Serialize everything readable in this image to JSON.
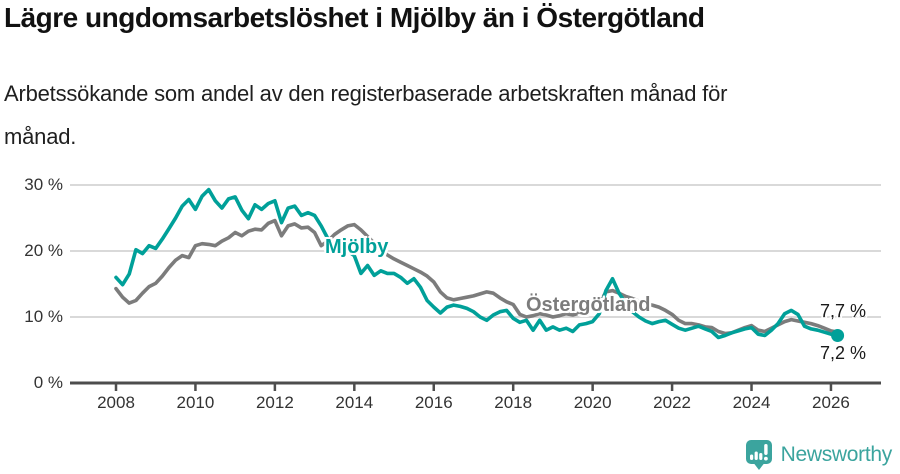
{
  "header": {
    "title": "Lägre ungdomsarbetslöshet i Mjölby än i Östergötland",
    "subtitle": "Arbetssökande som andel av den registerbaserade arbetskraften månad för\nmånad."
  },
  "chart_data": {
    "type": "line",
    "title": "Lägre ungdomsarbetslöshet i Mjölby än i Östergötland",
    "subtitle": "Arbetssökande som andel av den registerbaserade arbetskraften månad för månad.",
    "unit": "%",
    "y_ticks": [
      0,
      10,
      20,
      30
    ],
    "y_tick_labels": [
      "0 %",
      "10 %",
      "20 %",
      "30 %"
    ],
    "x_ticks": [
      2008,
      2010,
      2012,
      2014,
      2016,
      2018,
      2020,
      2022,
      2024,
      2026
    ],
    "x_range": [
      2008.0,
      2026.17
    ],
    "y_range": [
      0,
      30
    ],
    "x_start": 2008.0,
    "x_step_years": 0.16667,
    "grid": "horizontal-only",
    "legend_position": "inline-labels",
    "series": [
      {
        "name": "Östergötland",
        "color": "#7c7c7c",
        "end_label": "7,7 %",
        "end_value": 7.7,
        "values": [
          14.3,
          13.0,
          12.1,
          12.5,
          13.6,
          14.6,
          15.1,
          16.2,
          17.5,
          18.6,
          19.3,
          19.0,
          20.8,
          21.1,
          21.0,
          20.8,
          21.5,
          22.0,
          22.8,
          22.3,
          23.0,
          23.3,
          23.2,
          24.2,
          24.6,
          22.3,
          23.8,
          24.1,
          23.5,
          23.6,
          22.8,
          20.8,
          21.5,
          22.5,
          23.2,
          23.8,
          24.0,
          23.2,
          22.2,
          21.2,
          20.2,
          19.4,
          18.8,
          18.3,
          17.8,
          17.3,
          16.8,
          16.2,
          15.3,
          13.8,
          12.9,
          12.6,
          12.8,
          13.0,
          13.2,
          13.5,
          13.8,
          13.6,
          12.9,
          12.3,
          11.9,
          10.4,
          10.0,
          10.2,
          10.5,
          10.3,
          10.0,
          10.2,
          10.5,
          10.3,
          10.6,
          11.0,
          11.2,
          12.0,
          13.8,
          14.0,
          13.6,
          13.1,
          12.8,
          12.4,
          12.0,
          11.8,
          11.5,
          11.0,
          10.4,
          9.5,
          9.0,
          9.0,
          8.8,
          8.5,
          8.4,
          7.8,
          7.5,
          7.6,
          8.0,
          8.4,
          8.7,
          8.0,
          7.8,
          8.3,
          8.8,
          9.3,
          9.6,
          9.4,
          9.2,
          9.0,
          8.7,
          8.3,
          7.9,
          7.7
        ]
      },
      {
        "name": "Mjölby",
        "color": "#00a099",
        "end_label": "7,2 %",
        "end_value": 7.2,
        "end_dot": true,
        "values": [
          16.0,
          14.9,
          16.5,
          20.2,
          19.6,
          20.8,
          20.4,
          21.8,
          23.4,
          25.0,
          26.8,
          27.8,
          26.3,
          28.3,
          29.3,
          27.6,
          26.5,
          27.9,
          28.2,
          26.2,
          24.9,
          27.0,
          26.3,
          27.2,
          27.6,
          24.3,
          26.5,
          26.8,
          25.4,
          25.8,
          25.4,
          23.8,
          21.9,
          21.0,
          20.5,
          20.0,
          19.3,
          16.6,
          17.8,
          16.3,
          17.0,
          16.6,
          16.6,
          16.0,
          15.1,
          15.8,
          14.5,
          12.5,
          11.5,
          10.6,
          11.5,
          11.8,
          11.6,
          11.3,
          10.8,
          10.0,
          9.5,
          10.3,
          10.8,
          11.0,
          9.8,
          9.2,
          9.5,
          8.0,
          9.5,
          8.0,
          8.5,
          8.0,
          8.3,
          7.8,
          8.8,
          9.0,
          9.3,
          10.5,
          14.0,
          15.8,
          13.6,
          12.0,
          10.8,
          10.0,
          9.4,
          9.0,
          9.3,
          9.5,
          8.9,
          8.3,
          8.0,
          8.3,
          8.6,
          8.2,
          7.8,
          6.9,
          7.2,
          7.6,
          7.9,
          8.2,
          8.4,
          7.4,
          7.2,
          8.0,
          9.0,
          10.5,
          11.0,
          10.4,
          8.6,
          8.2,
          8.0,
          7.7,
          7.4,
          7.2
        ]
      }
    ]
  },
  "colors": {
    "accent_teal": "#00a099",
    "series_gray": "#7c7c7c",
    "logo_teal": "#3ba49e",
    "gridline": "#d9d9d9",
    "axis": "#4d4d4d"
  },
  "footer": {
    "brand": "Newsworthy"
  }
}
